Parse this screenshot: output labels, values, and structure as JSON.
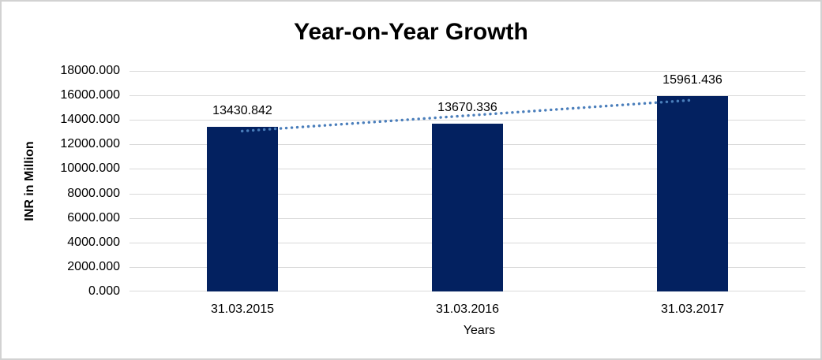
{
  "chart_data": {
    "type": "bar",
    "title": "Year-on-Year Growth",
    "categories": [
      "31.03.2015",
      "31.03.2016",
      "31.03.2017"
    ],
    "values": [
      13430.842,
      13670.336,
      15961.436
    ],
    "data_labels": [
      "13430.842",
      "13670.336",
      "15961.436"
    ],
    "xlabel": "Years",
    "ylabel": "INR in Million",
    "ylim": [
      0,
      18000
    ],
    "ytick_step": 2000,
    "ytick_labels": [
      "0.000",
      "2000.000",
      "4000.000",
      "6000.000",
      "8000.000",
      "10000.000",
      "12000.000",
      "14000.000",
      "16000.000",
      "18000.000"
    ],
    "grid": true,
    "legend": "none",
    "bar_color": "#032160",
    "gridline_color": "#d9d9d9",
    "text_color": "#000000",
    "trendline": {
      "type": "linear",
      "style": "dotted",
      "color": "#4a7ebb"
    }
  }
}
